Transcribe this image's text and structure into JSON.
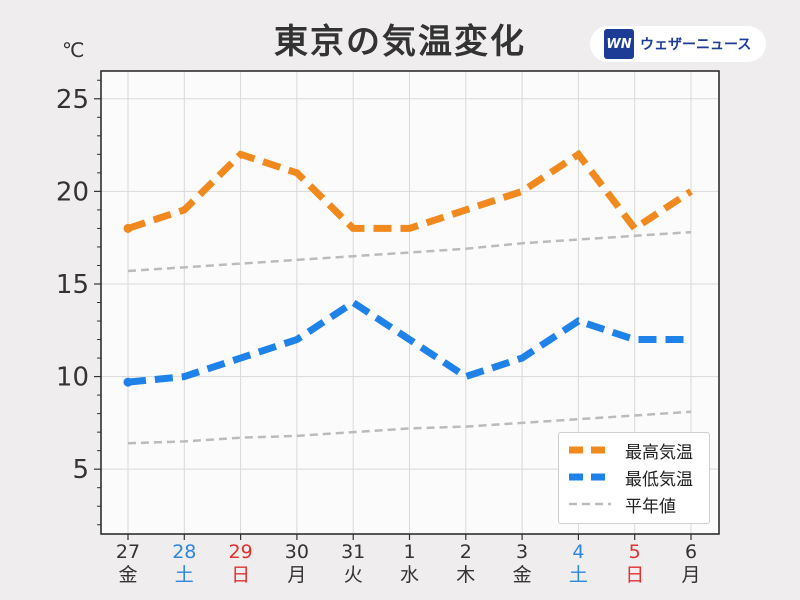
{
  "header": {
    "title": "東京の気温変化",
    "unit": "℃",
    "brand_logo": "WN",
    "brand_name": "ウェザーニュース"
  },
  "legend": {
    "placement": "bottom-right",
    "items": [
      {
        "label": "最高気温",
        "color": "#f08a1e",
        "style": "thick-dashed"
      },
      {
        "label": "最低気温",
        "color": "#1f82e8",
        "style": "thick-dashed"
      },
      {
        "label": "平年値",
        "color": "#bbbbbb",
        "style": "thin-dashed"
      }
    ]
  },
  "colors": {
    "weekday": "#333333",
    "saturday": "#2e86de",
    "holiday": "#e03030",
    "grid": "#d9d9d9",
    "plot_bg": "#fcfbfc"
  },
  "chart_data": {
    "type": "line",
    "title": "東京の気温変化",
    "ylabel": "℃",
    "xlabel": "",
    "ylim": [
      1.5,
      26.5
    ],
    "yticks": [
      5,
      10,
      15,
      20,
      25
    ],
    "grid": true,
    "legend_position": "bottom-right",
    "categories": [
      {
        "date": "27",
        "day": "金",
        "type": "weekday"
      },
      {
        "date": "28",
        "day": "土",
        "type": "saturday"
      },
      {
        "date": "29",
        "day": "日",
        "type": "holiday"
      },
      {
        "date": "30",
        "day": "月",
        "type": "weekday"
      },
      {
        "date": "31",
        "day": "火",
        "type": "weekday"
      },
      {
        "date": "1",
        "day": "水",
        "type": "weekday"
      },
      {
        "date": "2",
        "day": "木",
        "type": "weekday"
      },
      {
        "date": "3",
        "day": "金",
        "type": "weekday"
      },
      {
        "date": "4",
        "day": "土",
        "type": "saturday"
      },
      {
        "date": "5",
        "day": "日",
        "type": "holiday"
      },
      {
        "date": "6",
        "day": "月",
        "type": "weekday"
      }
    ],
    "series": [
      {
        "name": "最高気温",
        "color": "#f08a1e",
        "values": [
          18,
          19,
          22,
          21,
          18,
          18,
          19,
          20,
          22,
          18,
          20
        ]
      },
      {
        "name": "最低気温",
        "color": "#1f82e8",
        "values": [
          9.7,
          10,
          11,
          12,
          14,
          12,
          10,
          11,
          13,
          12,
          12
        ]
      },
      {
        "name": "平年値",
        "color": "#bbbbbb",
        "values": [
          15.7,
          15.9,
          16.1,
          16.3,
          16.5,
          16.7,
          16.9,
          17.2,
          17.4,
          17.6,
          17.8
        ]
      },
      {
        "name": "平年値",
        "color": "#bbbbbb",
        "values": [
          6.4,
          6.5,
          6.7,
          6.8,
          7.0,
          7.2,
          7.3,
          7.5,
          7.7,
          7.9,
          8.1
        ]
      }
    ]
  }
}
